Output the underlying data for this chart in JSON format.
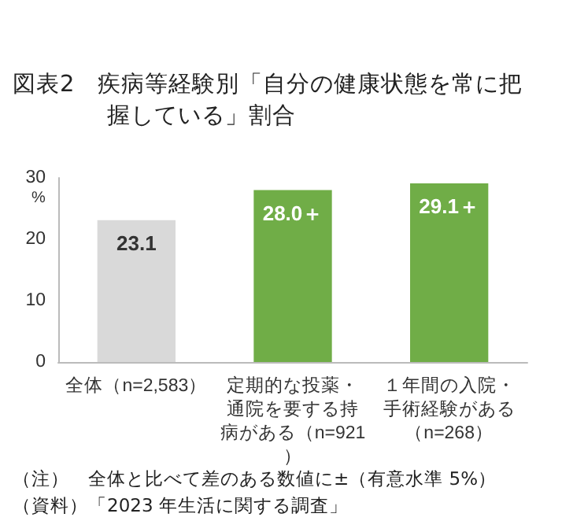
{
  "chart_data": {
    "type": "bar",
    "title": "図表2　疾病等経験別「自分の健康状態を常に把握している」割合",
    "categories": [
      "全体（n=2,583）",
      "定期的な投薬・通院を要する持病がある（n=921）",
      "１年間の入院・手術経験がある（n=268）"
    ],
    "values": [
      23.1,
      28.0,
      29.1
    ],
    "colors": [
      "#d9d9d9",
      "#70ad47",
      "#70ad47"
    ],
    "value_labels": [
      "23.1",
      "28.0＋",
      "29.1＋"
    ],
    "ylabel": "%",
    "ylim": [
      0,
      30
    ],
    "yticks": [
      0,
      10,
      20,
      30
    ],
    "grid": false,
    "annotations": [
      "（注）　全体と比べて差のある数値に±（有意水準 5%）",
      "（資料）「2023 年生活に関する調査」"
    ]
  }
}
